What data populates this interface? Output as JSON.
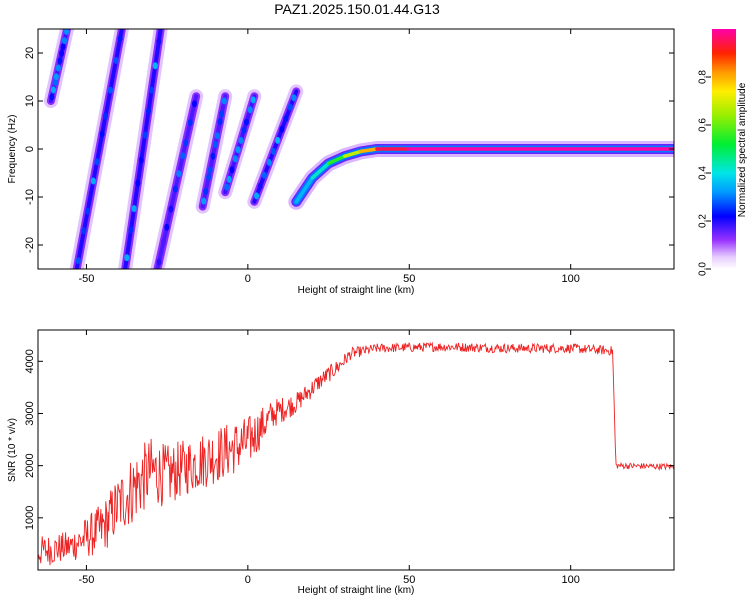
{
  "title": "PAZ1.2025.150.01.44.G13",
  "chart_data": [
    {
      "type": "heatmap",
      "xlabel": "Height of straight line (km)",
      "ylabel": "Frequency (Hz)",
      "xlim": [
        -65,
        132
      ],
      "ylim": [
        -25,
        25
      ],
      "xticks": [
        -50,
        0,
        50,
        100
      ],
      "yticks": [
        -20,
        -10,
        0,
        10,
        20
      ],
      "colorbar": {
        "label": "Normalized spectral amplitude",
        "range": [
          0,
          1
        ],
        "ticks": [
          0.0,
          0.2,
          0.4,
          0.6,
          0.8
        ]
      },
      "streaks": [
        {
          "x": [
            -61,
            -56
          ],
          "y": [
            10,
            25
          ],
          "amp": 0.18
        },
        {
          "x": [
            -53,
            -39
          ],
          "y": [
            -25,
            25
          ],
          "amp": 0.2
        },
        {
          "x": [
            -38,
            -27
          ],
          "y": [
            -25,
            25
          ],
          "amp": 0.2
        },
        {
          "x": [
            -28,
            -16
          ],
          "y": [
            -25,
            11
          ],
          "amp": 0.17
        },
        {
          "x": [
            -14,
            -7
          ],
          "y": [
            -12,
            11
          ],
          "amp": 0.17
        },
        {
          "x": [
            -7,
            2
          ],
          "y": [
            -9,
            11
          ],
          "amp": 0.18
        },
        {
          "x": [
            2,
            15
          ],
          "y": [
            -11,
            12
          ],
          "amp": 0.2
        }
      ],
      "ridge": {
        "x": [
          15,
          20,
          25,
          30,
          35,
          40,
          50,
          75,
          100,
          132
        ],
        "y": [
          -11,
          -6,
          -3,
          -1.5,
          -0.5,
          0,
          0,
          0,
          0,
          0
        ],
        "amp": [
          0.35,
          0.42,
          0.55,
          0.68,
          0.8,
          0.95,
          1.0,
          1.0,
          1.0,
          1.0
        ]
      }
    },
    {
      "type": "line",
      "xlabel": "Height of straight line (km)",
      "ylabel": "SNR (10 * v/v)",
      "xlim": [
        -65,
        132
      ],
      "ylim": [
        0,
        4600
      ],
      "xticks": [
        -50,
        0,
        50,
        100
      ],
      "yticks": [
        1000,
        2000,
        3000,
        4000
      ],
      "series": [
        {
          "name": "SNR",
          "color": "#ee2222",
          "x": [
            -65,
            -55,
            -45,
            -40,
            -35,
            -30,
            -25,
            -20,
            -10,
            0,
            8,
            15,
            22,
            28,
            32,
            40,
            60,
            80,
            100,
            113,
            114,
            132
          ],
          "y": [
            350,
            450,
            800,
            1250,
            1600,
            1900,
            1800,
            1950,
            2200,
            2450,
            3000,
            3200,
            3600,
            3900,
            4150,
            4250,
            4280,
            4250,
            4250,
            4200,
            2000,
            1980
          ],
          "noise": [
            300,
            300,
            500,
            600,
            700,
            650,
            600,
            550,
            550,
            500,
            280,
            200,
            170,
            150,
            110,
            90,
            90,
            90,
            90,
            90,
            60,
            60
          ]
        }
      ]
    }
  ]
}
